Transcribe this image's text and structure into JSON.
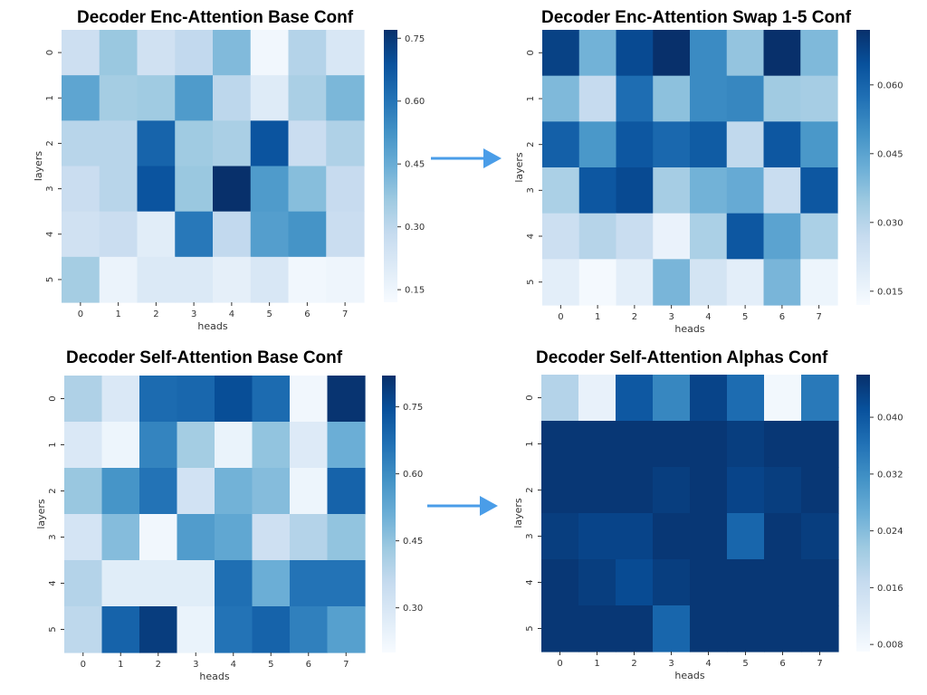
{
  "colors": {
    "cmap_low": "#f7fbff",
    "cmap_high": "#08306b",
    "arrow": "#4a9de8"
  },
  "chart_data": [
    {
      "type": "heatmap",
      "title": "Decoder Enc-Attention Base Conf",
      "xlabel": "heads",
      "ylabel": "layers",
      "x_ticks": [
        "0",
        "1",
        "2",
        "3",
        "4",
        "5",
        "6",
        "7"
      ],
      "y_ticks": [
        "0",
        "1",
        "2",
        "3",
        "4",
        "5"
      ],
      "vmin": 0.12,
      "vmax": 0.77,
      "colorbar_ticks": [
        "0.15",
        "0.30",
        "0.45",
        "0.60",
        "0.75"
      ],
      "values": [
        [
          0.26,
          0.37,
          0.25,
          0.29,
          0.41,
          0.14,
          0.32,
          0.22
        ],
        [
          0.47,
          0.35,
          0.36,
          0.5,
          0.3,
          0.2,
          0.34,
          0.42
        ],
        [
          0.31,
          0.31,
          0.64,
          0.36,
          0.34,
          0.68,
          0.27,
          0.33
        ],
        [
          0.27,
          0.31,
          0.68,
          0.37,
          0.77,
          0.5,
          0.4,
          0.28
        ],
        [
          0.25,
          0.27,
          0.19,
          0.59,
          0.29,
          0.49,
          0.52,
          0.27
        ],
        [
          0.35,
          0.16,
          0.21,
          0.21,
          0.18,
          0.22,
          0.14,
          0.15
        ]
      ]
    },
    {
      "type": "heatmap",
      "title": "Decoder Enc-Attention Swap 1-5 Conf",
      "xlabel": "heads",
      "ylabel": "layers",
      "x_ticks": [
        "0",
        "1",
        "2",
        "3",
        "4",
        "5",
        "6",
        "7"
      ],
      "y_ticks": [
        "0",
        "1",
        "2",
        "3",
        "4",
        "5"
      ],
      "vmin": 0.012,
      "vmax": 0.072,
      "colorbar_ticks": [
        "0.015",
        "0.030",
        "0.045",
        "0.060"
      ],
      "values": [
        [
          0.068,
          0.041,
          0.066,
          0.072,
          0.051,
          0.036,
          0.072,
          0.039
        ],
        [
          0.039,
          0.027,
          0.058,
          0.037,
          0.051,
          0.052,
          0.034,
          0.033
        ],
        [
          0.061,
          0.048,
          0.063,
          0.059,
          0.062,
          0.028,
          0.063,
          0.048
        ],
        [
          0.032,
          0.063,
          0.066,
          0.033,
          0.041,
          0.043,
          0.026,
          0.063
        ],
        [
          0.025,
          0.03,
          0.026,
          0.016,
          0.032,
          0.063,
          0.045,
          0.032
        ],
        [
          0.018,
          0.013,
          0.018,
          0.04,
          0.023,
          0.018,
          0.04,
          0.015
        ]
      ]
    },
    {
      "type": "heatmap",
      "title": "Decoder Self-Attention Base Conf",
      "xlabel": "heads",
      "ylabel": "layers",
      "x_ticks": [
        "0",
        "1",
        "2",
        "3",
        "4",
        "5",
        "6",
        "7"
      ],
      "y_ticks": [
        "0",
        "1",
        "2",
        "3",
        "4",
        "5"
      ],
      "vmin": 0.2,
      "vmax": 0.82,
      "colorbar_ticks": [
        "0.30",
        "0.45",
        "0.60",
        "0.75"
      ],
      "values": [
        [
          0.4,
          0.29,
          0.68,
          0.69,
          0.75,
          0.68,
          0.22,
          0.81
        ],
        [
          0.29,
          0.23,
          0.62,
          0.42,
          0.24,
          0.45,
          0.28,
          0.51
        ],
        [
          0.44,
          0.58,
          0.66,
          0.32,
          0.5,
          0.47,
          0.23,
          0.7
        ],
        [
          0.31,
          0.47,
          0.22,
          0.56,
          0.53,
          0.33,
          0.39,
          0.45
        ],
        [
          0.39,
          0.27,
          0.27,
          0.27,
          0.67,
          0.51,
          0.66,
          0.66
        ],
        [
          0.37,
          0.7,
          0.79,
          0.24,
          0.66,
          0.7,
          0.63,
          0.55
        ]
      ]
    },
    {
      "type": "heatmap",
      "title": "Decoder Self-Attention Alphas Conf",
      "xlabel": "heads",
      "ylabel": "layers",
      "x_ticks": [
        "0",
        "1",
        "2",
        "3",
        "4",
        "5",
        "6",
        "7"
      ],
      "y_ticks": [
        "0",
        "1",
        "2",
        "3",
        "4",
        "5"
      ],
      "vmin": 0.007,
      "vmax": 0.046,
      "colorbar_ticks": [
        "0.008",
        "0.016",
        "0.024",
        "0.032",
        "0.040"
      ],
      "values": [
        [
          0.019,
          0.01,
          0.04,
          0.033,
          0.043,
          0.037,
          0.008,
          0.035
        ],
        [
          0.045,
          0.045,
          0.045,
          0.045,
          0.045,
          0.044,
          0.045,
          0.045
        ],
        [
          0.045,
          0.045,
          0.045,
          0.044,
          0.045,
          0.043,
          0.044,
          0.045
        ],
        [
          0.044,
          0.043,
          0.043,
          0.045,
          0.045,
          0.038,
          0.045,
          0.044
        ],
        [
          0.045,
          0.044,
          0.042,
          0.044,
          0.045,
          0.045,
          0.045,
          0.045
        ],
        [
          0.045,
          0.045,
          0.045,
          0.038,
          0.045,
          0.045,
          0.045,
          0.045
        ]
      ]
    }
  ]
}
